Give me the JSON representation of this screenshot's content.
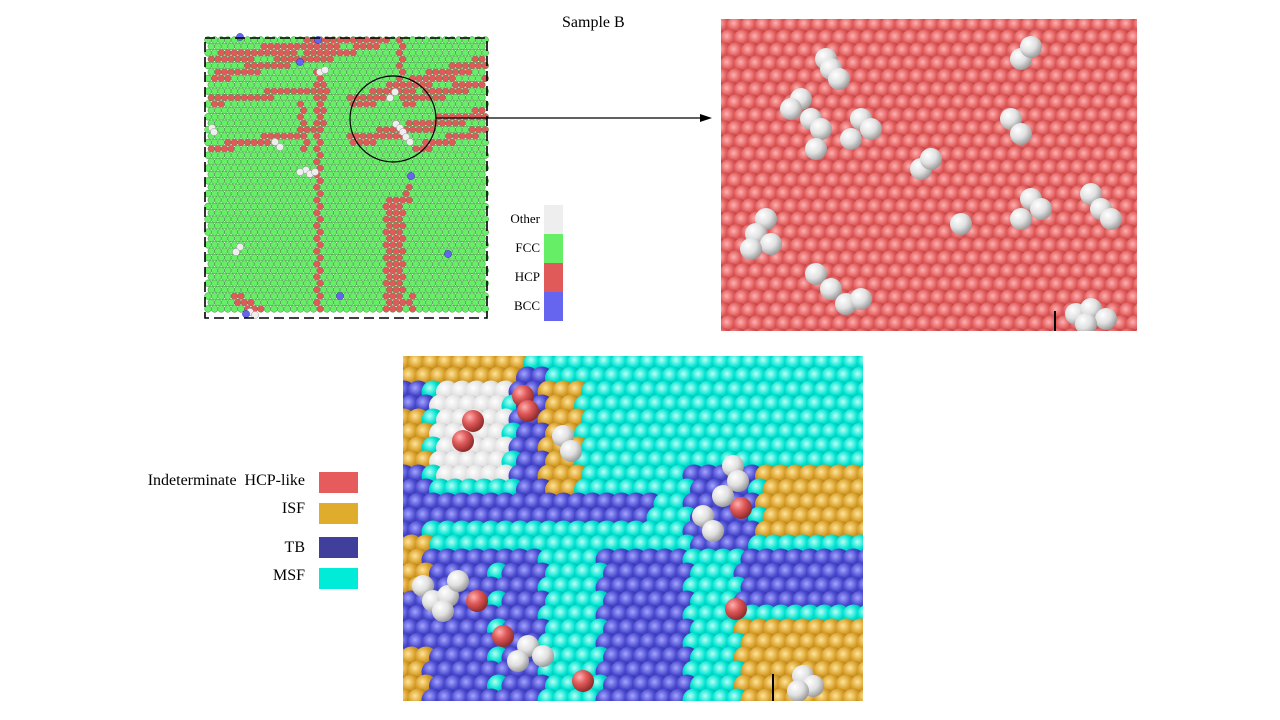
{
  "title": "Sample B",
  "colors": {
    "other": "#eeeeee",
    "fcc": "#66ee66",
    "hcp": "#e05a5a",
    "bcc": "#6565f0",
    "indeterminate": "#e65c5c",
    "isf": "#e0ac2c",
    "tb": "#40409c",
    "msf": "#00ecd8",
    "white_atom": "#e6e6e6"
  },
  "legend_structure": [
    {
      "label": "Other",
      "color_key": "other"
    },
    {
      "label": "FCC",
      "color_key": "fcc"
    },
    {
      "label": "HCP",
      "color_key": "hcp"
    },
    {
      "label": "BCC",
      "color_key": "bcc"
    }
  ],
  "legend_defects": [
    {
      "label": "Indeterminate  HCP-like",
      "color_key": "indeterminate"
    },
    {
      "label": "ISF",
      "color_key": "isf"
    },
    {
      "label": "TB",
      "color_key": "tb"
    },
    {
      "label": "MSF",
      "color_key": "msf"
    }
  ]
}
